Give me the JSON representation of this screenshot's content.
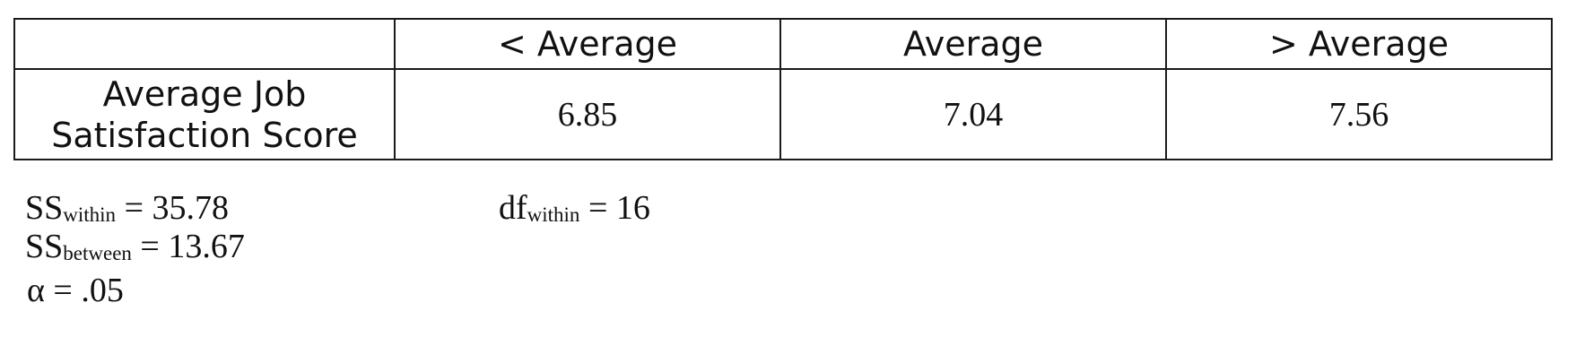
{
  "table": {
    "headers": [
      "",
      "< Average",
      "Average",
      "> Average"
    ],
    "row_label_lines": [
      "Average Job",
      "Satisfaction Score"
    ],
    "values": [
      "6.85",
      "7.04",
      "7.56"
    ]
  },
  "stats": {
    "ss_within": {
      "symbol": "SS",
      "subscript": "within",
      "equals_value": " = 35.78"
    },
    "df_within": {
      "symbol": "df",
      "subscript": "within",
      "equals_value": " = 16"
    },
    "ss_between": {
      "symbol": "SS",
      "subscript": "between",
      "equals_value": " = 13.67"
    },
    "alpha": {
      "text": "α = .05"
    }
  }
}
